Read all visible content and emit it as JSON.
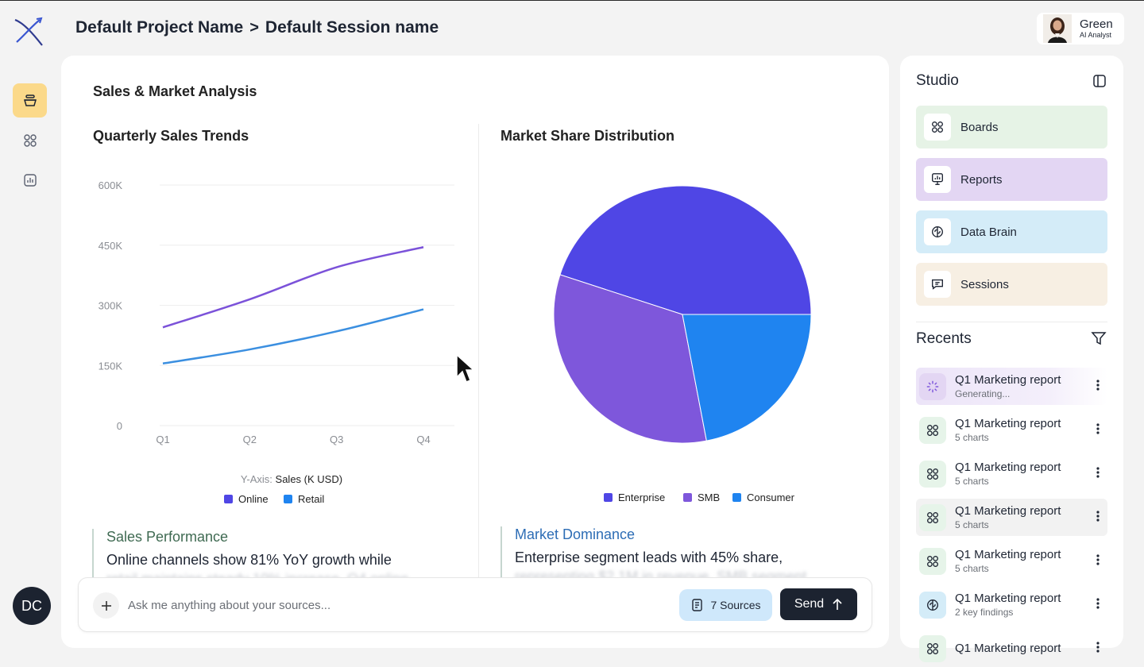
{
  "header": {
    "project": "Default Project Name",
    "separator": ">",
    "session": "Default Session name"
  },
  "profile": {
    "name": "Green",
    "role": "AI Analyst"
  },
  "user": {
    "initials": "DC"
  },
  "rail": {
    "items": [
      "bowl-icon",
      "grid-icon",
      "chart-icon"
    ]
  },
  "main": {
    "title": "Sales & Market Analysis",
    "insights": [
      {
        "title": "Sales Performance",
        "body": "Online channels show 81% YoY growth while",
        "faded": "retail maintains steady 10% increase. Q4 online",
        "title_color": "#3f6a52"
      },
      {
        "title": "Market Dominance",
        "body": "Enterprise segment leads with 45% share,",
        "faded": "representing $2.1M in revenue. SMB segment",
        "title_color": "#2d6db5"
      }
    ]
  },
  "chart_data": [
    {
      "type": "line",
      "title": "Quarterly Sales Trends",
      "categories": [
        "Q1",
        "Q2",
        "Q3",
        "Q4"
      ],
      "y_ticks": [
        "0",
        "150K",
        "300K",
        "450K",
        "600K"
      ],
      "ylim": [
        0,
        600
      ],
      "ylabel_prefix": "Y-Axis:",
      "ylabel": "Sales (K USD)",
      "series": [
        {
          "name": "Online",
          "color": "#7b52d9",
          "values": [
            245,
            315,
            395,
            445
          ]
        },
        {
          "name": "Retail",
          "color": "#3b8fe0",
          "values": [
            155,
            190,
            235,
            290
          ]
        }
      ],
      "legend_colors": [
        "#4f46e5",
        "#1f84f0"
      ],
      "grid": true
    },
    {
      "type": "pie",
      "title": "Market Share Distribution",
      "slices": [
        {
          "name": "Enterprise",
          "value": 45,
          "color": "#4f46e5"
        },
        {
          "name": "SMB",
          "value": 33,
          "color": "#7e57db"
        },
        {
          "name": "Consumer",
          "value": 22,
          "color": "#1f84f0"
        }
      ]
    }
  ],
  "composer": {
    "placeholder": "Ask me anything about your sources...",
    "sources_label": "7 Sources",
    "send_label": "Send"
  },
  "studio": {
    "title": "Studio",
    "items": [
      {
        "label": "Boards",
        "bg": "#e6f3e6",
        "icon": "grid-icon"
      },
      {
        "label": "Reports",
        "bg": "#e3d6f3",
        "icon": "presentation-icon"
      },
      {
        "label": "Data Brain",
        "bg": "#d4ecf8",
        "icon": "brain-icon"
      },
      {
        "label": "Sessions",
        "bg": "#f7efe3",
        "icon": "chat-icon"
      }
    ],
    "recents_title": "Recents",
    "recents": [
      {
        "name": "Q1 Marketing report",
        "sub": "Generating...",
        "icon": "loader-icon",
        "state": "generating"
      },
      {
        "name": "Q1 Marketing report",
        "sub": "5 charts",
        "icon": "grid-icon",
        "state": ""
      },
      {
        "name": "Q1 Marketing report",
        "sub": "5 charts",
        "icon": "grid-icon",
        "state": ""
      },
      {
        "name": "Q1 Marketing report",
        "sub": "5 charts",
        "icon": "grid-icon",
        "state": "hover"
      },
      {
        "name": "Q1 Marketing report",
        "sub": "5 charts",
        "icon": "grid-icon",
        "state": ""
      },
      {
        "name": "Q1 Marketing report",
        "sub": "2 key findings",
        "icon": "brain-icon",
        "state": ""
      },
      {
        "name": "Q1 Marketing report",
        "sub": "",
        "icon": "grid-icon",
        "state": ""
      }
    ]
  }
}
